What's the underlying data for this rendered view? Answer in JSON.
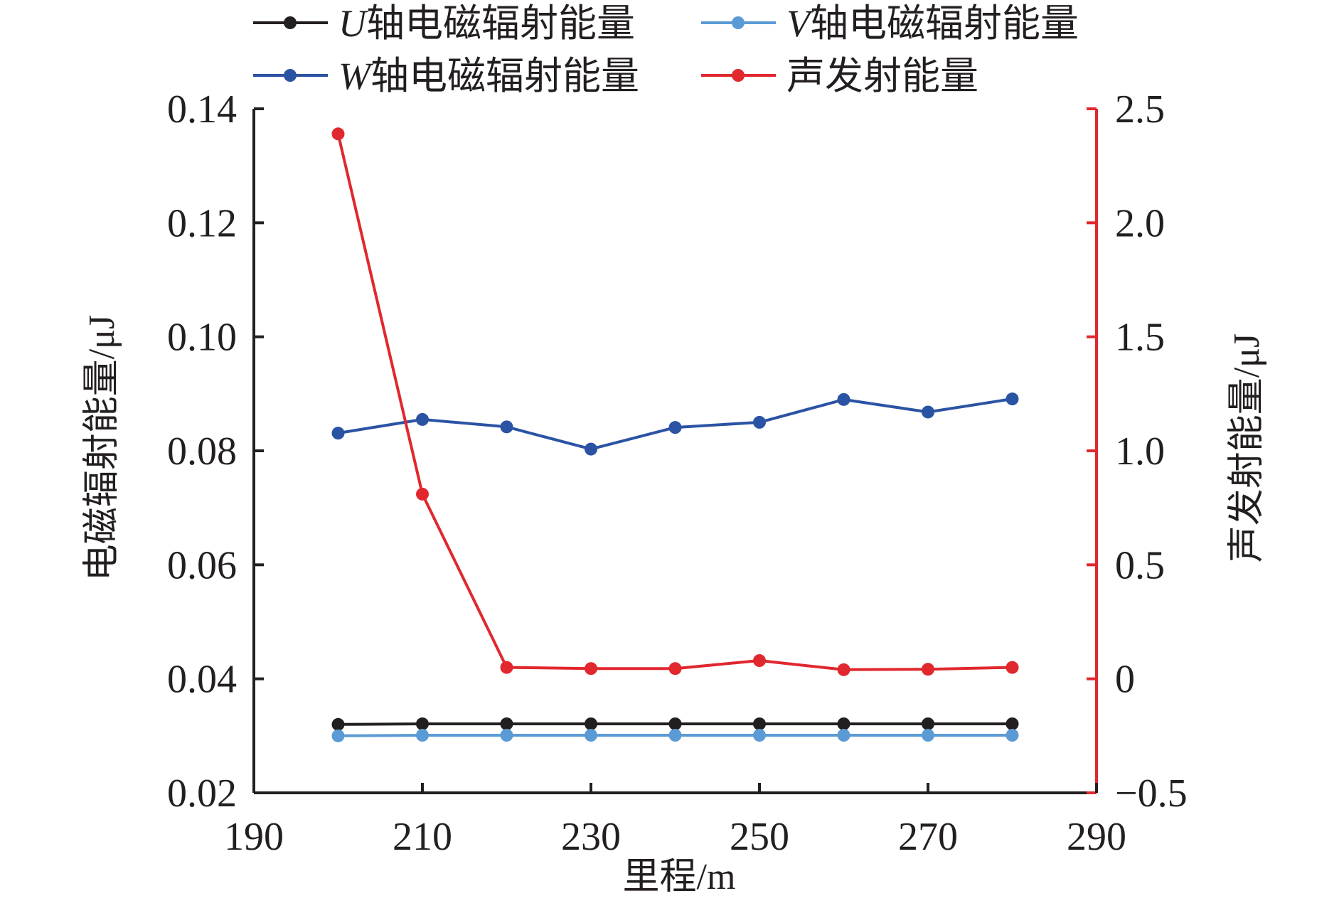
{
  "chart_data": {
    "type": "line",
    "x": [
      200,
      210,
      220,
      230,
      240,
      250,
      260,
      270,
      280
    ],
    "xlabel": "里程/m",
    "xlim": [
      190,
      290
    ],
    "xticks": [
      "190",
      "210",
      "230",
      "250",
      "270",
      "290"
    ],
    "xtick_values": [
      190,
      210,
      230,
      250,
      270,
      290
    ],
    "ylabel_left": "电磁辐射能量/μJ",
    "ylim_left": [
      0.02,
      0.14
    ],
    "yticks_left": [
      "0.02",
      "0.04",
      "0.06",
      "0.08",
      "0.10",
      "0.12",
      "0.14"
    ],
    "ytick_values_left": [
      0.02,
      0.04,
      0.06,
      0.08,
      0.1,
      0.12,
      0.14
    ],
    "ylabel_right": "声发射能量/μJ",
    "ylim_right": [
      -0.5,
      2.5
    ],
    "yticks_right": [
      "−0.5",
      "0",
      "0.5",
      "1.0",
      "1.5",
      "2.0",
      "2.5"
    ],
    "ytick_values_right": [
      -0.5,
      0,
      0.5,
      1.0,
      1.5,
      2.0,
      2.5
    ],
    "legend_position": "top",
    "series": [
      {
        "name": "U轴电磁辐射能量",
        "italic_prefix": "U",
        "suffix": "轴电磁辐射能量",
        "axis": "left",
        "color": "#231f20",
        "values": [
          0.032,
          0.0321,
          0.0321,
          0.0321,
          0.0321,
          0.0321,
          0.0321,
          0.0321,
          0.0321
        ]
      },
      {
        "name": "V轴电磁辐射能量",
        "italic_prefix": "V",
        "suffix": "轴电磁辐射能量",
        "axis": "left",
        "color": "#5b9bd5",
        "values": [
          0.03,
          0.0301,
          0.0301,
          0.0301,
          0.0301,
          0.0301,
          0.0301,
          0.0301,
          0.0301
        ]
      },
      {
        "name": "W轴电磁辐射能量",
        "italic_prefix": "W",
        "suffix": "轴电磁辐射能量",
        "axis": "left",
        "color": "#2b53a4",
        "values": [
          0.0831,
          0.0855,
          0.0842,
          0.0803,
          0.0841,
          0.085,
          0.089,
          0.0868,
          0.0891
        ]
      },
      {
        "name": "声发射能量",
        "italic_prefix": "",
        "suffix": "声发射能量",
        "axis": "right",
        "color": "#e0282e",
        "values": [
          2.39,
          0.81,
          0.05,
          0.045,
          0.045,
          0.08,
          0.04,
          0.042,
          0.05
        ]
      }
    ]
  }
}
